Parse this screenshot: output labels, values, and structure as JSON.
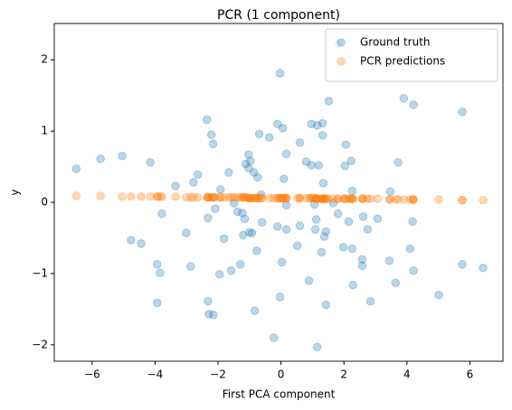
{
  "chart_data": {
    "type": "scatter",
    "title": "PCR (1 component)",
    "xlabel": "First PCA component",
    "ylabel": "y",
    "xlim": [
      -7.2,
      7.05
    ],
    "ylim": [
      -2.23,
      2.51
    ],
    "xticks": [
      {
        "value": -6,
        "label": "−6"
      },
      {
        "value": -4,
        "label": "−4"
      },
      {
        "value": -2,
        "label": "−2"
      },
      0,
      2,
      4,
      6
    ],
    "yticks": [
      {
        "value": -2,
        "label": "−2"
      },
      {
        "value": -1,
        "label": "−1"
      },
      0,
      1,
      2
    ],
    "grid": false,
    "legend": "upper right",
    "series": [
      {
        "name": "Ground truth",
        "color": "#1f77b4",
        "x": [
          -6.5,
          -5.73,
          -5.04,
          -4.15,
          -3.35,
          -3.78,
          -4.76,
          -4.44,
          -3.93,
          -3.84,
          -3.93,
          -2.87,
          -3.01,
          -2.78,
          -2.64,
          -2.35,
          -2.21,
          -2.15,
          -2.32,
          -2.09,
          -1.92,
          -1.81,
          -1.95,
          -1.58,
          -1.29,
          -2.32,
          -2.29,
          -2.15,
          -1.66,
          -1.49,
          -1.38,
          -1.23,
          -1.15,
          -1.2,
          -1.0,
          -0.92,
          -1.12,
          -1.03,
          -0.97,
          -1.03,
          -0.86,
          -0.69,
          -0.37,
          -0.74,
          -0.63,
          -0.6,
          -0.83,
          -0.77,
          -0.23,
          -0.11,
          0.06,
          -0.03,
          0.17,
          0.09,
          0.17,
          -0.11,
          0.17,
          0.03,
          -0.03,
          0.6,
          0.8,
          0.6,
          0.52,
          0.97,
          0.97,
          1.2,
          1.15,
          1.32,
          1.35,
          1.06,
          1.12,
          1.09,
          0.89,
          1.15,
          1.32,
          1.52,
          1.66,
          1.81,
          1.43,
          1.38,
          1.29,
          1.43,
          1.81,
          2.06,
          2.03,
          2.23,
          2.26,
          2.15,
          1.98,
          2.26,
          2.29,
          2.58,
          2.58,
          2.61,
          2.75,
          2.84,
          3.07,
          3.47,
          3.44,
          3.64,
          3.72,
          3.9,
          4.21,
          4.1,
          4.18,
          4.21,
          5.01,
          5.76,
          5.76,
          6.42
        ],
        "values": [
          0.47,
          0.61,
          0.65,
          0.56,
          0.23,
          -0.16,
          -0.53,
          -0.58,
          -0.87,
          -0.99,
          -1.41,
          -0.9,
          -0.43,
          0.28,
          0.39,
          1.16,
          0.95,
          0.82,
          -0.22,
          -0.09,
          0.18,
          -0.51,
          -1.01,
          -0.96,
          -0.87,
          -1.39,
          -1.57,
          -1.58,
          0.42,
          -0.01,
          -0.13,
          -0.15,
          -0.23,
          -0.46,
          -0.42,
          -0.43,
          0.54,
          0.67,
          0.58,
          0.48,
          0.42,
          0.96,
          0.91,
          0.35,
          0.11,
          -0.28,
          -1.52,
          -0.68,
          -1.9,
          1.1,
          1.04,
          1.81,
          0.68,
          0.33,
          -0.04,
          -0.34,
          -0.38,
          -0.84,
          -1.33,
          0.84,
          0.57,
          -0.33,
          -0.61,
          1.1,
          0.52,
          0.52,
          1.08,
          0.94,
          0.27,
          -0.03,
          -0.24,
          -0.38,
          -1.1,
          -2.03,
          1.11,
          1.42,
          -0.01,
          -0.16,
          -0.41,
          -0.48,
          -0.7,
          -1.44,
          2.23,
          0.81,
          0.51,
          0.58,
          0.16,
          -0.27,
          -0.63,
          -0.65,
          -1.16,
          -0.8,
          -0.89,
          -0.2,
          -0.38,
          -1.39,
          -0.23,
          0.15,
          -0.82,
          -1.13,
          0.56,
          1.46,
          1.37,
          -0.65,
          -0.27,
          -0.96,
          -1.3,
          1.27,
          -0.87,
          -0.92
        ]
      },
      {
        "name": "PCR predictions",
        "color": "#ff7f0e",
        "x": [
          -6.5,
          -5.73,
          -5.04,
          -4.15,
          -3.35,
          -3.78,
          -4.76,
          -4.44,
          -3.93,
          -3.84,
          -3.93,
          -2.87,
          -3.01,
          -2.78,
          -2.64,
          -2.35,
          -2.21,
          -2.15,
          -2.32,
          -2.09,
          -1.92,
          -1.81,
          -1.95,
          -1.58,
          -1.29,
          -2.32,
          -2.29,
          -2.15,
          -1.66,
          -1.49,
          -1.38,
          -1.23,
          -1.15,
          -1.2,
          -1.0,
          -0.92,
          -1.12,
          -1.03,
          -0.97,
          -1.03,
          -0.86,
          -0.69,
          -0.37,
          -0.74,
          -0.63,
          -0.6,
          -0.83,
          -0.77,
          -0.23,
          -0.11,
          0.06,
          -0.03,
          0.17,
          0.09,
          0.17,
          -0.11,
          0.17,
          0.03,
          -0.03,
          0.6,
          0.8,
          0.6,
          0.52,
          0.97,
          0.97,
          1.2,
          1.15,
          1.32,
          1.35,
          1.06,
          1.12,
          1.09,
          0.89,
          1.15,
          1.32,
          1.52,
          1.66,
          1.81,
          1.43,
          1.38,
          1.29,
          1.43,
          1.81,
          2.06,
          2.03,
          2.23,
          2.26,
          2.15,
          1.98,
          2.26,
          2.29,
          2.58,
          2.58,
          2.61,
          2.75,
          2.84,
          3.07,
          3.47,
          3.44,
          3.64,
          3.72,
          3.9,
          4.21,
          4.1,
          4.18,
          4.21,
          5.01,
          5.76,
          5.76,
          6.42
        ],
        "values": [
          0.09,
          0.09,
          0.08,
          0.08,
          0.08,
          0.08,
          0.08,
          0.08,
          0.08,
          0.08,
          0.08,
          0.07,
          0.07,
          0.07,
          0.07,
          0.07,
          0.07,
          0.07,
          0.07,
          0.07,
          0.07,
          0.07,
          0.07,
          0.07,
          0.07,
          0.07,
          0.07,
          0.07,
          0.07,
          0.07,
          0.07,
          0.07,
          0.07,
          0.07,
          0.06,
          0.06,
          0.07,
          0.06,
          0.06,
          0.06,
          0.06,
          0.06,
          0.06,
          0.06,
          0.06,
          0.06,
          0.06,
          0.06,
          0.06,
          0.06,
          0.06,
          0.06,
          0.06,
          0.06,
          0.06,
          0.06,
          0.06,
          0.06,
          0.06,
          0.06,
          0.06,
          0.06,
          0.06,
          0.06,
          0.06,
          0.05,
          0.05,
          0.05,
          0.05,
          0.06,
          0.05,
          0.06,
          0.06,
          0.05,
          0.05,
          0.05,
          0.05,
          0.05,
          0.05,
          0.05,
          0.05,
          0.05,
          0.05,
          0.05,
          0.05,
          0.05,
          0.05,
          0.05,
          0.05,
          0.05,
          0.05,
          0.05,
          0.05,
          0.05,
          0.05,
          0.05,
          0.05,
          0.04,
          0.04,
          0.04,
          0.04,
          0.04,
          0.04,
          0.04,
          0.04,
          0.04,
          0.04,
          0.03,
          0.03,
          0.03
        ]
      }
    ]
  }
}
